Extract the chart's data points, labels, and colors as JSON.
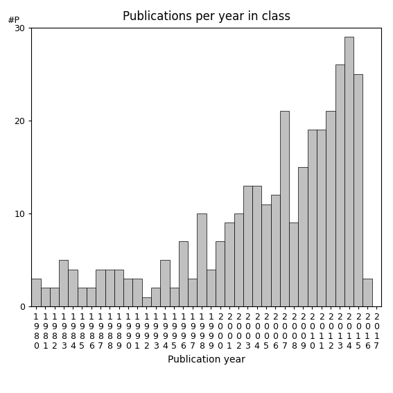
{
  "title": "Publications per year in class",
  "xlabel": "Publication year",
  "ylabel": "#P",
  "years": [
    1980,
    1981,
    1982,
    1983,
    1984,
    1985,
    1986,
    1987,
    1988,
    1989,
    1990,
    1991,
    1992,
    1993,
    1994,
    1995,
    1996,
    1997,
    1998,
    1999,
    2000,
    2001,
    2002,
    2003,
    2004,
    2005,
    2006,
    2007,
    2008,
    2009,
    2010,
    2011,
    2012,
    2013,
    2014,
    2015,
    2016,
    2017
  ],
  "values": [
    3,
    2,
    2,
    5,
    4,
    2,
    2,
    4,
    4,
    4,
    3,
    3,
    1,
    2,
    5,
    2,
    7,
    3,
    10,
    4,
    7,
    9,
    10,
    13,
    13,
    11,
    12,
    21,
    9,
    15,
    19,
    19,
    21,
    26,
    29,
    25,
    3,
    0
  ],
  "bar_color": "#c0c0c0",
  "bar_edgecolor": "#000000",
  "ylim": [
    0,
    30
  ],
  "yticks": [
    0,
    10,
    20,
    30
  ],
  "bg_color": "#ffffff",
  "title_fontsize": 12,
  "label_fontsize": 10,
  "tick_fontsize": 9
}
